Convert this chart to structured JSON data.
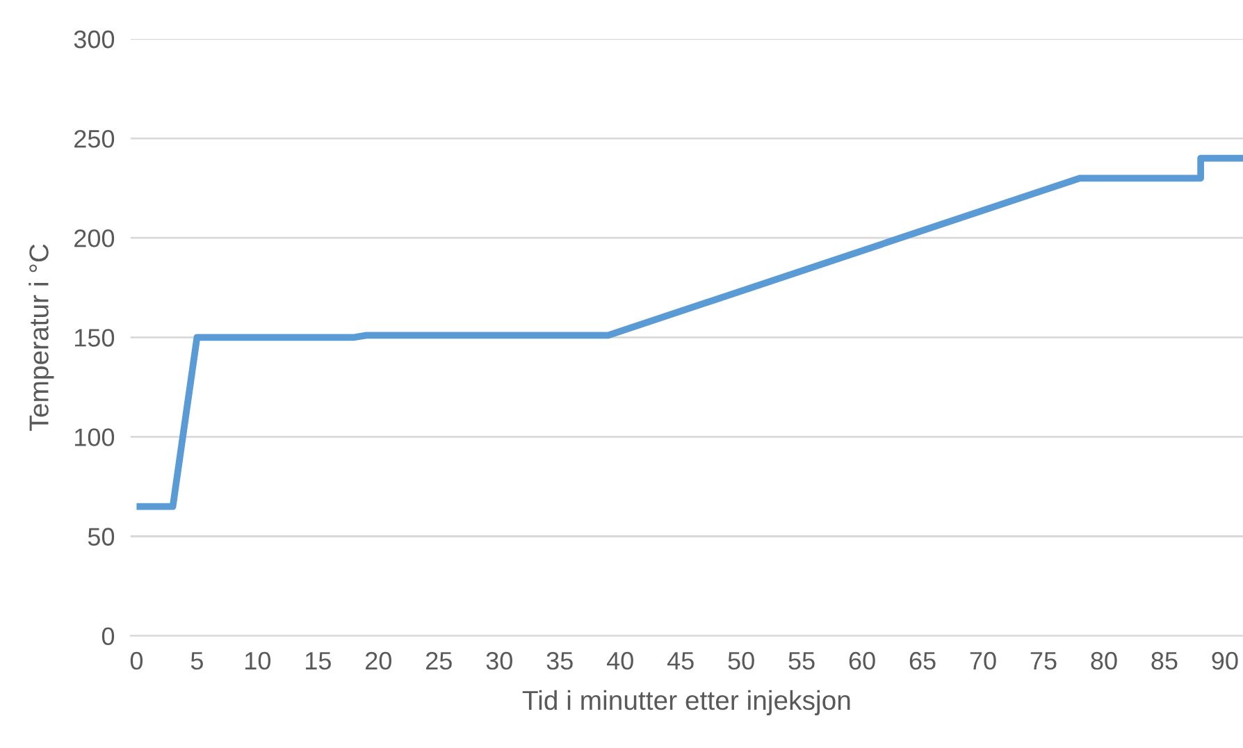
{
  "chart_data": {
    "type": "line",
    "xlabel": "Tid i minutter etter injeksjon",
    "ylabel": "Temperatur i °C",
    "x": [
      0,
      3,
      5,
      18,
      19,
      39,
      78,
      88,
      88,
      91.5
    ],
    "series": [
      {
        "color": "#5b9bd5",
        "values": [
          65,
          65,
          150,
          150,
          151,
          151,
          230,
          230,
          240,
          240
        ]
      }
    ],
    "xlim": [
      -0.5,
      91.5
    ],
    "xticks": [
      0,
      5,
      10,
      15,
      20,
      25,
      30,
      35,
      40,
      45,
      50,
      55,
      60,
      65,
      70,
      75,
      80,
      85,
      90
    ],
    "ylim": [
      0,
      300
    ],
    "yticks": [
      0,
      50,
      100,
      150,
      200,
      250,
      300
    ],
    "grid": "y",
    "marker": "none",
    "line_style": "solid"
  }
}
